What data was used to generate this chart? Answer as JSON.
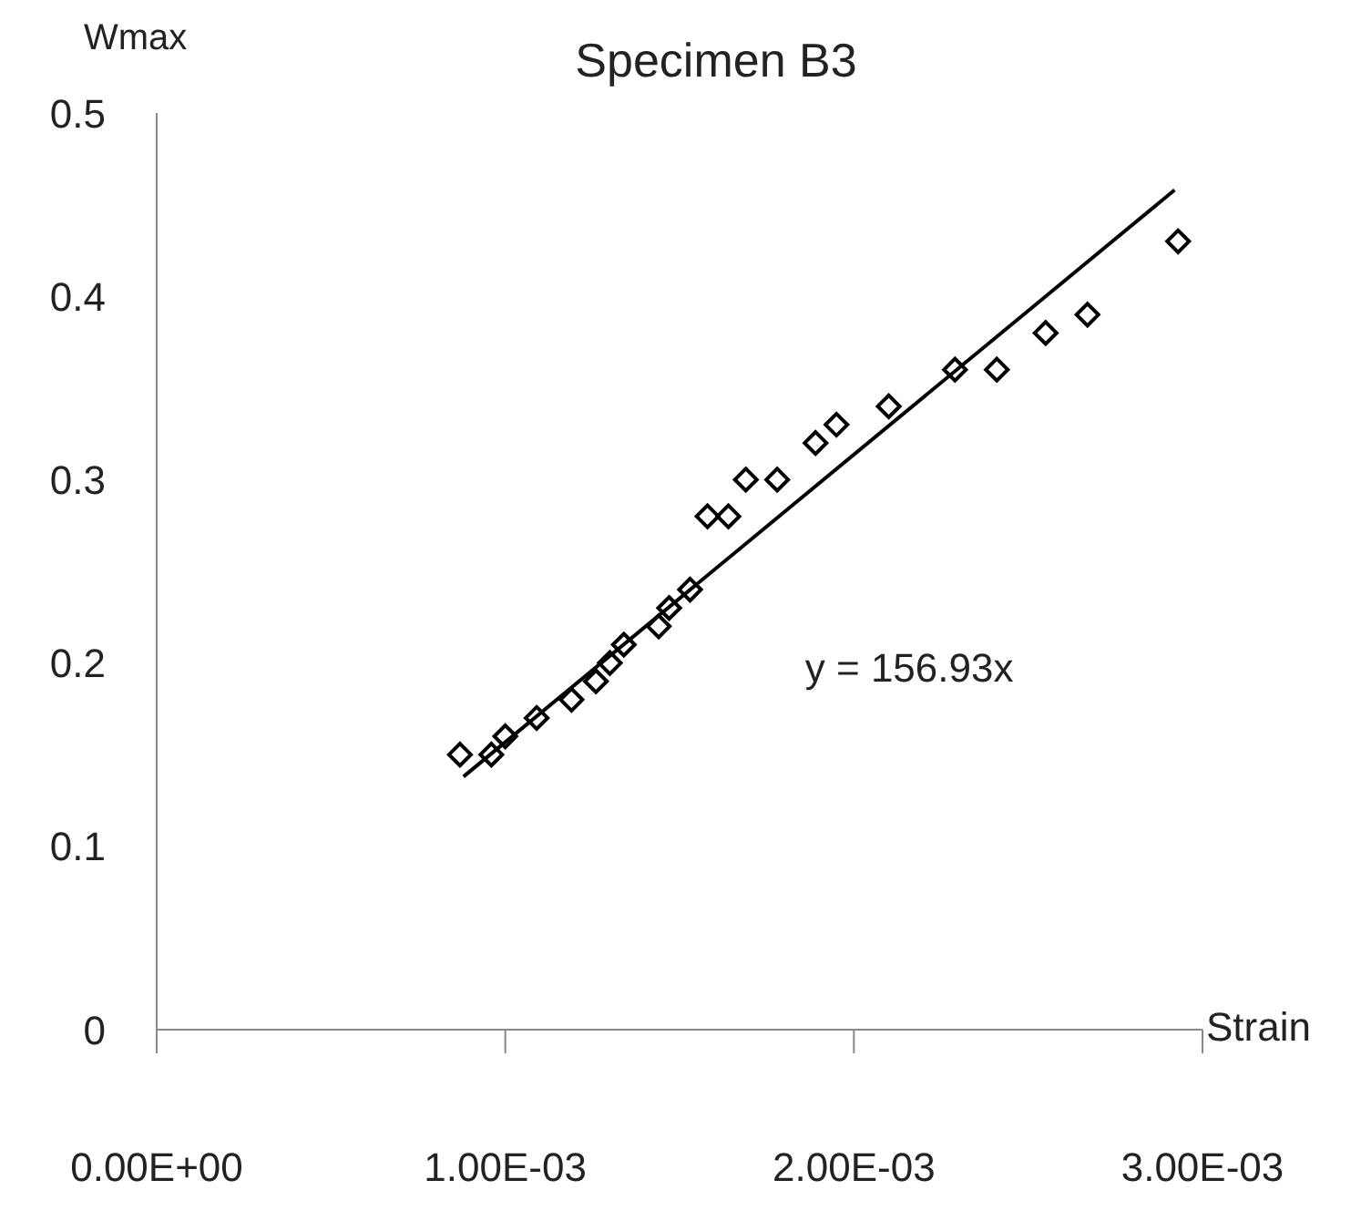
{
  "chart_data": {
    "type": "scatter",
    "title": "Specimen B3",
    "xlabel": "Strain",
    "ylabel": "Wmax",
    "annotations": [
      "y = 156.93x"
    ],
    "xlim": [
      0,
      0.003
    ],
    "xticks": [
      {
        "value": 0,
        "label": "0.00E+00"
      },
      {
        "value": 0.001,
        "label": "1.00E-03"
      },
      {
        "value": 0.002,
        "label": "2.00E-03"
      },
      {
        "value": 0.003,
        "label": "3.00E-03"
      }
    ],
    "ylim": [
      0,
      0.5
    ],
    "yticks": [
      0,
      0.1,
      0.2,
      0.3,
      0.4,
      0.5
    ],
    "series": [
      {
        "color": "#000000",
        "marker": "diamond",
        "x": [
          0.00087,
          0.00096,
          0.001,
          0.00109,
          0.00119,
          0.00126,
          0.0013,
          0.00134,
          0.00144,
          0.00147,
          0.00153,
          0.00158,
          0.00164,
          0.00169,
          0.00178,
          0.00189,
          0.00195,
          0.0021,
          0.00229,
          0.00241,
          0.00255,
          0.00267,
          0.00293
        ],
        "values": [
          0.15,
          0.15,
          0.16,
          0.17,
          0.18,
          0.19,
          0.2,
          0.21,
          0.22,
          0.23,
          0.24,
          0.28,
          0.28,
          0.3,
          0.3,
          0.32,
          0.33,
          0.34,
          0.36,
          0.36,
          0.38,
          0.39,
          0.43
        ]
      },
      {
        "type": "line",
        "color": "#000000",
        "marker": "none",
        "line_style": "solid",
        "x": [
          0.00088,
          0.00292
        ],
        "values": [
          0.138,
          0.458
        ]
      }
    ]
  }
}
